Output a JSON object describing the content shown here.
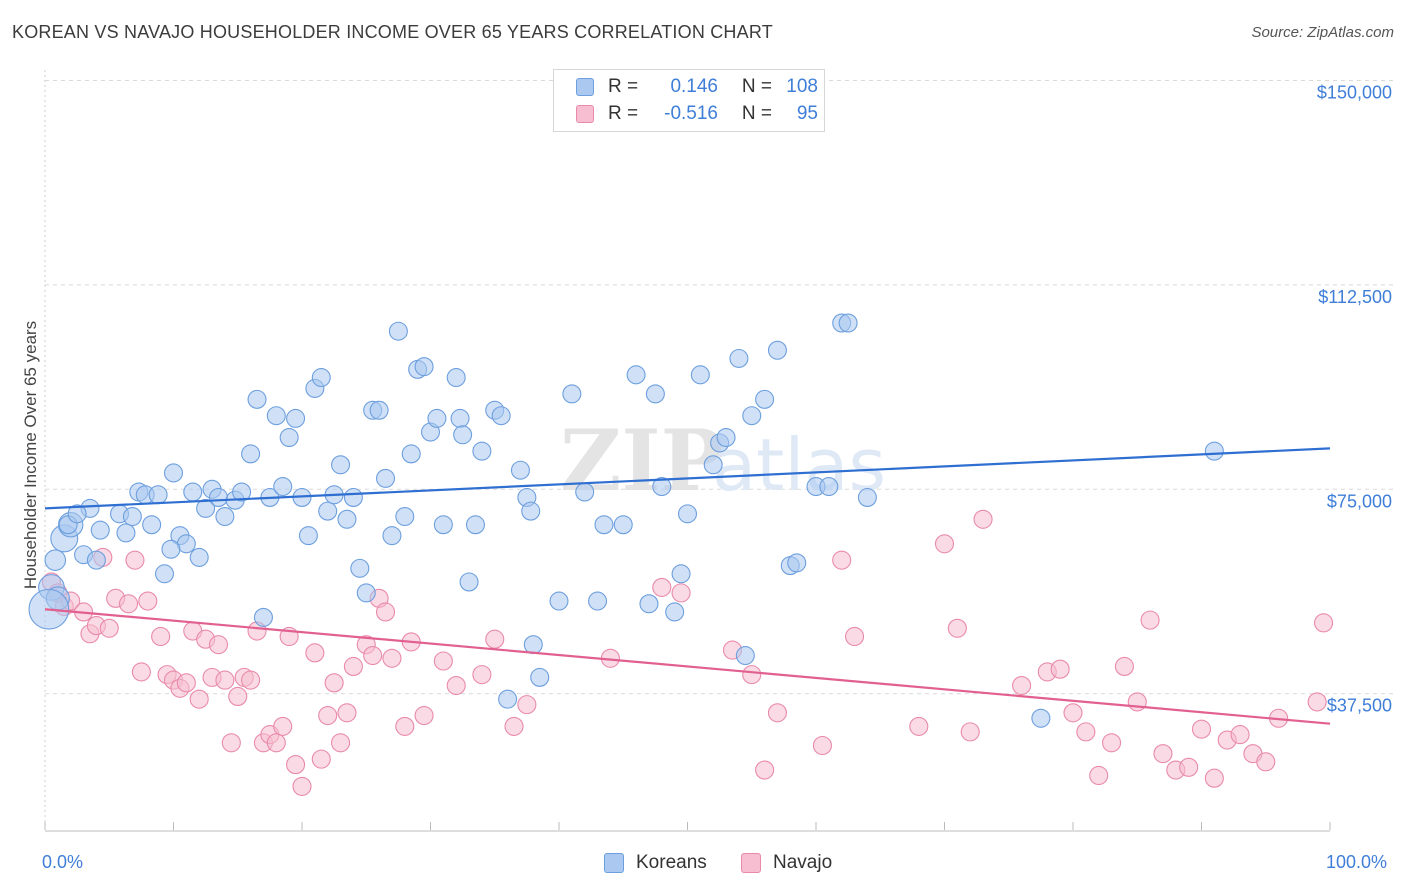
{
  "header": {
    "title": "KOREAN VS NAVAJO HOUSEHOLDER INCOME OVER 65 YEARS CORRELATION CHART",
    "source": "Source: ZipAtlas.com"
  },
  "legend": {
    "row1": {
      "r_label": "R =",
      "r_value": "0.146",
      "n_label": "N =",
      "n_value": "108"
    },
    "row2": {
      "r_label": "R =",
      "r_value": "-0.516",
      "n_label": "N =",
      "n_value": "95"
    },
    "bottom": {
      "koreans": "Koreans",
      "navajo": "Navajo"
    }
  },
  "axes": {
    "x_min_label": "0.0%",
    "x_max_label": "100.0%",
    "ylabel": "Householder Income Over 65 years",
    "y_tick_labels": [
      "$150,000",
      "$112,500",
      "$75,000",
      "$37,500"
    ]
  },
  "watermark": {
    "part1": "ZIP",
    "part2": "atlas"
  },
  "colors": {
    "korean_fill": "#aac8f0",
    "korean_stroke": "#6d9fde",
    "korean_line": "#2f6fd1",
    "navajo_fill": "#f6bed0",
    "navajo_stroke": "#e98aaa",
    "navajo_line": "#e2608f",
    "tick_label": "#3f7ed8",
    "grid": "#d9d9d9"
  },
  "chart_data": {
    "type": "scatter",
    "title": "KOREAN VS NAVAJO HOUSEHOLDER INCOME OVER 65 YEARS CORRELATION CHART",
    "xlabel": "",
    "ylabel": "Householder Income Over 65 years",
    "xlim": [
      0,
      100
    ],
    "ylim": [
      12500,
      153750
    ],
    "y_ticks": [
      37500,
      75000,
      112500,
      150000
    ],
    "grid": true,
    "series": [
      {
        "name": "Koreans",
        "r": 0.146,
        "n": 108,
        "trend": {
          "x": [
            0,
            100
          ],
          "y": [
            71500,
            82500
          ]
        },
        "points": [
          [
            0.8,
            62000
          ],
          [
            1.5,
            66000
          ],
          [
            2,
            68500
          ],
          [
            3,
            63000
          ],
          [
            3.5,
            71500
          ],
          [
            4,
            62000
          ],
          [
            4.3,
            67500
          ],
          [
            5.8,
            70500
          ],
          [
            6.3,
            67000
          ],
          [
            7.3,
            74500
          ],
          [
            7.8,
            74000
          ],
          [
            8.3,
            68500
          ],
          [
            8.8,
            74000
          ],
          [
            9.3,
            59500
          ],
          [
            10,
            78000
          ],
          [
            10.5,
            66500
          ],
          [
            11,
            65000
          ],
          [
            11.5,
            74500
          ],
          [
            12,
            62500
          ],
          [
            12.5,
            71500
          ],
          [
            13,
            75000
          ],
          [
            13.5,
            73500
          ],
          [
            14,
            70000
          ],
          [
            14.8,
            73000
          ],
          [
            15.3,
            74500
          ],
          [
            16,
            81500
          ],
          [
            16.5,
            91500
          ],
          [
            17,
            51500
          ],
          [
            17.5,
            73500
          ],
          [
            18,
            88500
          ],
          [
            18.5,
            75500
          ],
          [
            19,
            84500
          ],
          [
            19.5,
            88000
          ],
          [
            20,
            73500
          ],
          [
            20.5,
            66500
          ],
          [
            21,
            93500
          ],
          [
            21.5,
            95500
          ],
          [
            22,
            71000
          ],
          [
            22.5,
            74000
          ],
          [
            23,
            79500
          ],
          [
            23.5,
            69500
          ],
          [
            24,
            73500
          ],
          [
            24.5,
            60500
          ],
          [
            25,
            56000
          ],
          [
            25.5,
            89500
          ],
          [
            26,
            89500
          ],
          [
            26.5,
            77000
          ],
          [
            27,
            66500
          ],
          [
            27.5,
            104000
          ],
          [
            28,
            70000
          ],
          [
            28.5,
            81500
          ],
          [
            29,
            97000
          ],
          [
            29.5,
            97500
          ],
          [
            30,
            85500
          ],
          [
            30.5,
            88000
          ],
          [
            31,
            68500
          ],
          [
            32,
            95500
          ],
          [
            32.3,
            88000
          ],
          [
            32.5,
            85000
          ],
          [
            33,
            58000
          ],
          [
            33.5,
            68500
          ],
          [
            34,
            82000
          ],
          [
            35,
            89500
          ],
          [
            35.5,
            88500
          ],
          [
            36,
            36500
          ],
          [
            37,
            78500
          ],
          [
            37.5,
            73500
          ],
          [
            37.8,
            71000
          ],
          [
            38,
            46500
          ],
          [
            38.5,
            40500
          ],
          [
            40,
            54500
          ],
          [
            41,
            92500
          ],
          [
            42,
            74500
          ],
          [
            43,
            54500
          ],
          [
            43.5,
            68500
          ],
          [
            45,
            68500
          ],
          [
            46,
            96000
          ],
          [
            47,
            54000
          ],
          [
            47.5,
            92500
          ],
          [
            48,
            75500
          ],
          [
            49,
            52500
          ],
          [
            49.5,
            59500
          ],
          [
            50,
            70500
          ],
          [
            51,
            96000
          ],
          [
            52,
            79500
          ],
          [
            52.5,
            83500
          ],
          [
            53,
            84500
          ],
          [
            54,
            99000
          ],
          [
            54.5,
            44500
          ],
          [
            55,
            88500
          ],
          [
            56,
            91500
          ],
          [
            57,
            100500
          ],
          [
            58,
            61000
          ],
          [
            58.5,
            61500
          ],
          [
            60,
            75500
          ],
          [
            61,
            75500
          ],
          [
            62,
            105500
          ],
          [
            62.5,
            105500
          ],
          [
            64,
            73500
          ],
          [
            77.5,
            33000
          ],
          [
            91,
            82000
          ],
          [
            0.5,
            57000
          ],
          [
            1,
            55000
          ],
          [
            1.8,
            68500
          ],
          [
            2.5,
            70500
          ],
          [
            6.8,
            70000
          ],
          [
            9.8,
            64000
          ],
          [
            0.3,
            53000
          ]
        ],
        "sizes": [
          32,
          42,
          38,
          28,
          28,
          28,
          28,
          28,
          28,
          28,
          28,
          28,
          28,
          28,
          28,
          28,
          28,
          28,
          28,
          28,
          28,
          28,
          28,
          28,
          28,
          28,
          28,
          28,
          28,
          28,
          28,
          28,
          28,
          28,
          28,
          28,
          28,
          28,
          28,
          28,
          28,
          28,
          28,
          28,
          28,
          28,
          28,
          28,
          28,
          28,
          28,
          28,
          28,
          28,
          28,
          28,
          28,
          28,
          28,
          28,
          28,
          28,
          28,
          28,
          28,
          28,
          28,
          28,
          28,
          28,
          28,
          28,
          28,
          28,
          28,
          28,
          28,
          28,
          28,
          28,
          28,
          28,
          28,
          28,
          28,
          28,
          28,
          28,
          28,
          28,
          28,
          28,
          28,
          28,
          28,
          28,
          28,
          28,
          28,
          28,
          28,
          40,
          36,
          28,
          28,
          28,
          28,
          62
        ]
      },
      {
        "name": "Navajo",
        "r": -0.516,
        "n": 95,
        "trend": {
          "x": [
            0,
            100
          ],
          "y": [
            53000,
            32000
          ]
        },
        "points": [
          [
            0.5,
            58000
          ],
          [
            1,
            56000
          ],
          [
            1.5,
            53500
          ],
          [
            2,
            54500
          ],
          [
            3,
            52500
          ],
          [
            3.5,
            48500
          ],
          [
            4,
            50000
          ],
          [
            4.5,
            62500
          ],
          [
            5,
            49500
          ],
          [
            5.5,
            55000
          ],
          [
            6.5,
            54000
          ],
          [
            7,
            62000
          ],
          [
            7.5,
            41500
          ],
          [
            8,
            54500
          ],
          [
            9,
            48000
          ],
          [
            9.5,
            41000
          ],
          [
            10,
            40000
          ],
          [
            10.5,
            38500
          ],
          [
            11,
            39500
          ],
          [
            11.5,
            49000
          ],
          [
            12,
            36500
          ],
          [
            12.5,
            47500
          ],
          [
            13,
            40500
          ],
          [
            13.5,
            46500
          ],
          [
            14,
            40000
          ],
          [
            14.5,
            28500
          ],
          [
            15,
            37000
          ],
          [
            15.5,
            40500
          ],
          [
            16,
            40000
          ],
          [
            16.5,
            49000
          ],
          [
            17,
            28500
          ],
          [
            17.5,
            30000
          ],
          [
            18,
            28500
          ],
          [
            18.5,
            31500
          ],
          [
            19,
            48000
          ],
          [
            19.5,
            24500
          ],
          [
            20,
            20500
          ],
          [
            21,
            45000
          ],
          [
            21.5,
            25500
          ],
          [
            22,
            33500
          ],
          [
            22.5,
            39500
          ],
          [
            23,
            28500
          ],
          [
            23.5,
            34000
          ],
          [
            24,
            42500
          ],
          [
            25,
            46500
          ],
          [
            25.5,
            44500
          ],
          [
            26,
            55000
          ],
          [
            26.5,
            52500
          ],
          [
            27,
            44000
          ],
          [
            28,
            31500
          ],
          [
            28.5,
            47000
          ],
          [
            29.5,
            33500
          ],
          [
            31,
            43500
          ],
          [
            32,
            39000
          ],
          [
            34,
            41000
          ],
          [
            35,
            47500
          ],
          [
            36.5,
            31500
          ],
          [
            37.5,
            35500
          ],
          [
            44,
            44000
          ],
          [
            48,
            57000
          ],
          [
            49.5,
            56000
          ],
          [
            53.5,
            45500
          ],
          [
            55,
            41000
          ],
          [
            56,
            23500
          ],
          [
            57,
            34000
          ],
          [
            60.5,
            28000
          ],
          [
            62,
            62000
          ],
          [
            63,
            48000
          ],
          [
            68,
            31500
          ],
          [
            70,
            65000
          ],
          [
            71,
            49500
          ],
          [
            72,
            30500
          ],
          [
            73,
            69500
          ],
          [
            76,
            39000
          ],
          [
            78,
            41500
          ],
          [
            79,
            42000
          ],
          [
            80,
            34000
          ],
          [
            81,
            30500
          ],
          [
            82,
            22500
          ],
          [
            83,
            28500
          ],
          [
            84,
            42500
          ],
          [
            85,
            36000
          ],
          [
            86,
            51000
          ],
          [
            87,
            26500
          ],
          [
            88,
            23500
          ],
          [
            89,
            24000
          ],
          [
            90,
            31000
          ],
          [
            91,
            22000
          ],
          [
            92,
            29000
          ],
          [
            93,
            30000
          ],
          [
            94,
            26500
          ],
          [
            95,
            25000
          ],
          [
            96,
            33000
          ],
          [
            99,
            36000
          ],
          [
            99.5,
            50500
          ]
        ]
      }
    ]
  }
}
